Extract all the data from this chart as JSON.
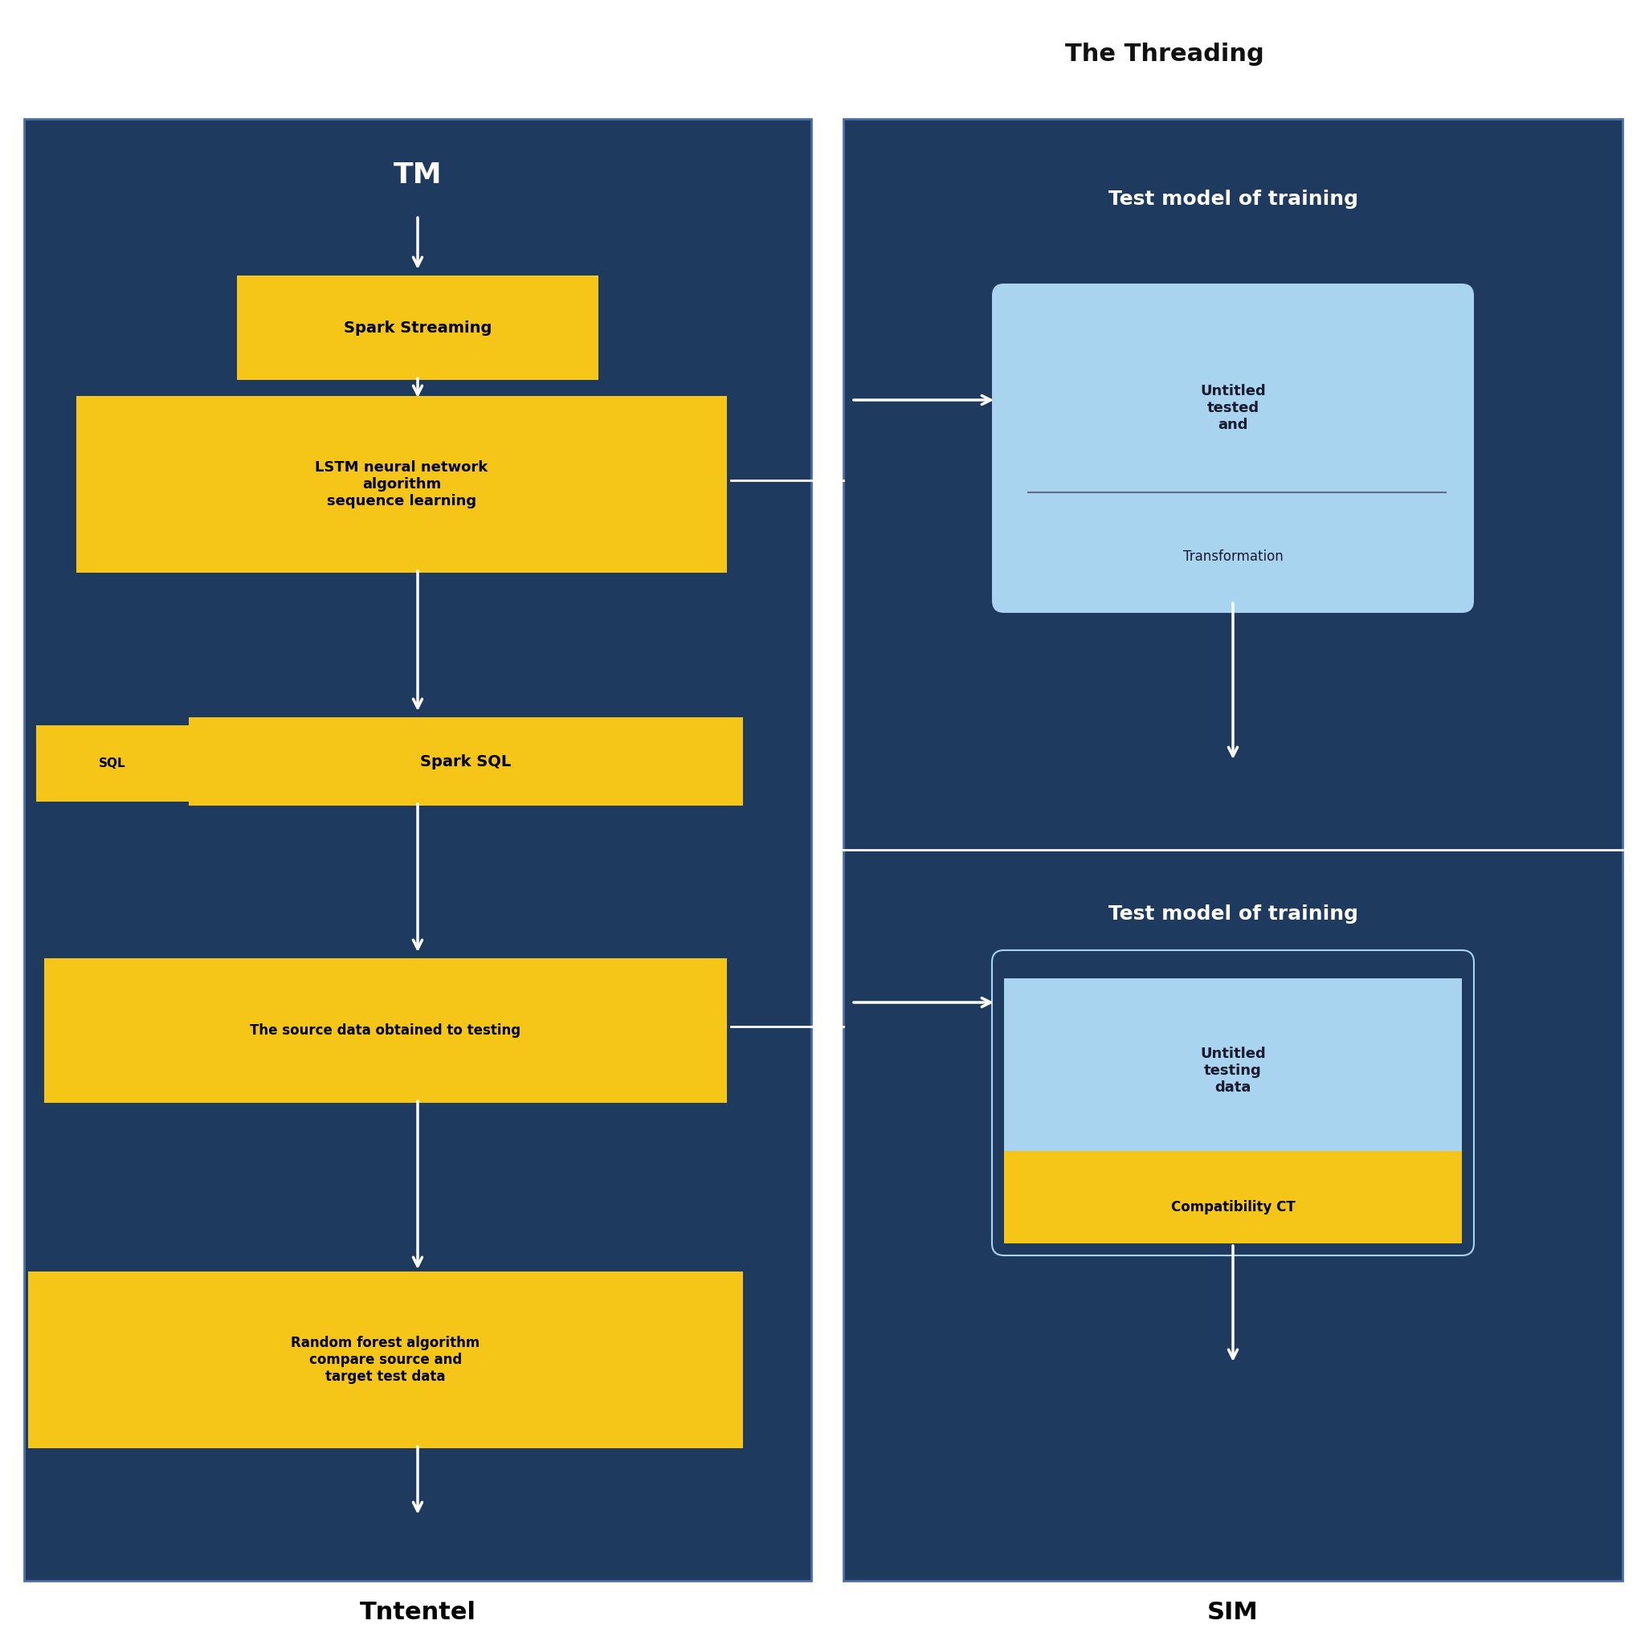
{
  "bg_color": "#ffffff",
  "dark_blue": "#1e3a5f",
  "yellow": "#f5c518",
  "light_blue": "#a8d4f0",
  "white": "#ffffff",
  "title_top": "The Threading",
  "left_panel_label": "Tntentel",
  "right_panel_label": "SIM",
  "left_top_label": "TM",
  "left_box1_text": "Spark Streaming",
  "left_box2_text": "LSTM neural network\nalgorithm\nsequence learning",
  "left_small_text": "SQL",
  "left_box3_text": "Spark SQL",
  "left_box4_text": "The source data obtained to testing",
  "left_box5_text": "Random forest algorithm\ncompare source and\ntarget test data",
  "right_top_label": "Test model of training",
  "right_top_box_top": "Untitled\ntested\nand",
  "right_top_box_bot": "Transformation",
  "right_bot_label": "Test model of training",
  "right_bot_box_top": "Untitled\ntesting\ndata",
  "right_bot_box_bot": "Compatibility CT"
}
